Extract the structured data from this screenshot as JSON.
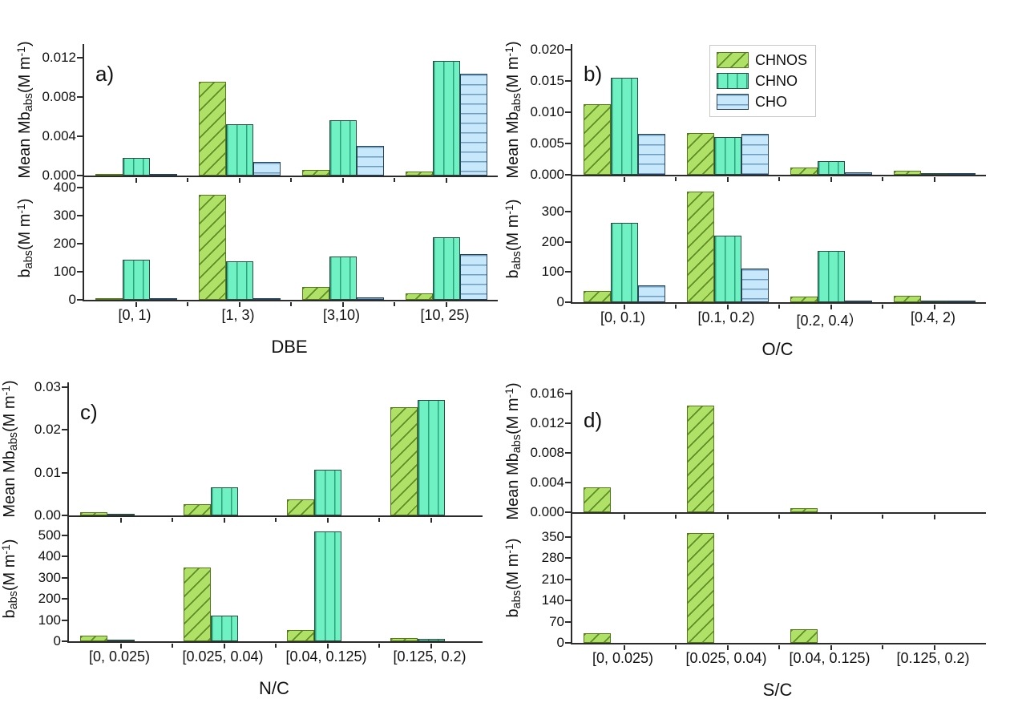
{
  "figure": {
    "background": "#ffffff",
    "text_color": "#111111",
    "axis_color": "#2b2b2b",
    "series_styles": [
      {
        "name": "CHNOS",
        "fill": "#aee166",
        "border": "#55781f",
        "pattern": "diagonal",
        "pattern_color": "#5f8c28"
      },
      {
        "name": "CHNO",
        "fill": "#70f1c4",
        "border": "#2b4a41",
        "pattern": "vertical",
        "pattern_color": "#2aa37c"
      },
      {
        "name": "CHO",
        "fill": "#c6e8fa",
        "border": "#27435c",
        "pattern": "horizontal",
        "pattern_color": "#6d9cc0"
      }
    ],
    "legend": {
      "entries": [
        "CHNOS",
        "CHNO",
        "CHO"
      ],
      "position": "top-right-of-panel-b"
    }
  },
  "chart_data": [
    {
      "panel_label": "a)",
      "type": "bar",
      "xlabel": "DBE",
      "categories": [
        "[0, 1)",
        "[1, 3)",
        "[3,10)",
        "[10, 25)"
      ],
      "top": {
        "ylabel_parts": [
          {
            "t": "Mean Mb"
          },
          {
            "sub": "abs"
          },
          {
            "t": "(M m"
          },
          {
            "sup": "-1"
          },
          {
            "t": ")"
          }
        ],
        "ymax": 0.0134,
        "yticks": [
          0,
          0.004,
          0.008,
          0.012
        ],
        "ytick_labels": [
          "0.000",
          "0.004",
          "0.008",
          "0.012"
        ],
        "series": [
          {
            "name": "CHNOS",
            "values": [
              0.0001,
              0.0096,
              0.0006,
              0.0004
            ]
          },
          {
            "name": "CHNO",
            "values": [
              0.0018,
              0.0052,
              0.0056,
              0.0117
            ]
          },
          {
            "name": "CHO",
            "values": [
              0.0002,
              0.0014,
              0.003,
              0.0104
            ]
          }
        ]
      },
      "bottom": {
        "ylabel_parts": [
          {
            "t": "b"
          },
          {
            "sub": "abs"
          },
          {
            "t": "(M m"
          },
          {
            "sup": "-1"
          },
          {
            "t": ")"
          }
        ],
        "ymax": 443,
        "yticks": [
          0,
          100,
          200,
          300,
          400
        ],
        "ytick_labels": [
          "0",
          "100",
          "200",
          "300",
          "400"
        ],
        "series": [
          {
            "name": "CHNOS",
            "values": [
              2,
              375,
              45,
              23
            ]
          },
          {
            "name": "CHNO",
            "values": [
              144,
              137,
              154,
              223
            ]
          },
          {
            "name": "CHO",
            "values": [
              4,
              2,
              10,
              164
            ]
          }
        ]
      }
    },
    {
      "panel_label": "b)",
      "type": "bar",
      "xlabel": "O/C",
      "show_legend": true,
      "categories": [
        "[0, 0.1)",
        "[0.1, 0.2)",
        "[0.2, 0.4）",
        "[0.4, 2)"
      ],
      "top": {
        "ylabel_parts": [
          {
            "t": "Mean Mb"
          },
          {
            "sub": "abs"
          },
          {
            "t": "(M m"
          },
          {
            "sup": "-1"
          },
          {
            "t": ")"
          }
        ],
        "ymax": 0.0209,
        "yticks": [
          0,
          0.005,
          0.01,
          0.015,
          0.02
        ],
        "ytick_labels": [
          "0.000",
          "0.005",
          "0.010",
          "0.015",
          "0.020"
        ],
        "series": [
          {
            "name": "CHNOS",
            "values": [
              0.0113,
              0.0067,
              0.0012,
              0.0006
            ]
          },
          {
            "name": "CHNO",
            "values": [
              0.0155,
              0.006,
              0.0022,
              0.0003
            ]
          },
          {
            "name": "CHO",
            "values": [
              0.0065,
              0.0065,
              0.0004,
              0.0003
            ]
          }
        ]
      },
      "bottom": {
        "ylabel_parts": [
          {
            "t": "b"
          },
          {
            "sub": "abs"
          },
          {
            "t": "(M m"
          },
          {
            "sup": "-1"
          },
          {
            "t": ")"
          }
        ],
        "ymax": 422,
        "yticks": [
          0,
          100,
          200,
          300
        ],
        "ytick_labels": [
          "0",
          "100",
          "200",
          "300"
        ],
        "series": [
          {
            "name": "CHNOS",
            "values": [
              38,
              365,
              18,
              21
            ]
          },
          {
            "name": "CHNO",
            "values": [
              262,
              220,
              170,
              5
            ]
          },
          {
            "name": "CHO",
            "values": [
              57,
              111,
              3,
              3
            ]
          }
        ]
      }
    },
    {
      "panel_label": "c)",
      "type": "bar",
      "xlabel": "N/C",
      "categories": [
        "[0, 0.025)",
        "[0.025, 0.04)",
        "[0.04, 0.125)",
        "[0.125, 0.2)"
      ],
      "top": {
        "ylabel_parts": [
          {
            "t": "Mean Mb"
          },
          {
            "sub": "abs"
          },
          {
            "t": "(M m"
          },
          {
            "sup": "-1"
          },
          {
            "t": ")"
          }
        ],
        "ymax": 0.0311,
        "yticks": [
          0,
          0.01,
          0.02,
          0.03
        ],
        "ytick_labels": [
          "0.00",
          "0.01",
          "0.02",
          "0.03"
        ],
        "series": [
          {
            "name": "CHNOS",
            "values": [
              0.0008,
              0.0027,
              0.0037,
              0.0252
            ]
          },
          {
            "name": "CHNO",
            "values": [
              0.0002,
              0.0065,
              0.0106,
              0.027
            ]
          },
          {
            "name": "CHO",
            "values": [
              0,
              0,
              0,
              0
            ]
          }
        ]
      },
      "bottom": {
        "ylabel_parts": [
          {
            "t": "b"
          },
          {
            "sub": "abs"
          },
          {
            "t": "(M m"
          },
          {
            "sup": "-1"
          },
          {
            "t": ")"
          }
        ],
        "ymax": 595,
        "yticks": [
          0,
          100,
          200,
          300,
          400,
          500
        ],
        "ytick_labels": [
          "0",
          "100",
          "200",
          "300",
          "400",
          "500"
        ],
        "series": [
          {
            "name": "CHNOS",
            "values": [
              27,
              348,
              53,
              15
            ]
          },
          {
            "name": "CHNO",
            "values": [
              3,
              123,
              520,
              13
            ]
          },
          {
            "name": "CHO",
            "values": [
              0,
              0,
              0,
              0
            ]
          }
        ]
      }
    },
    {
      "panel_label": "d)",
      "type": "bar",
      "xlabel": "S/C",
      "categories": [
        "[0, 0.025)",
        "[0.025, 0.04)",
        "[0.04, 0.125)",
        "[0.125, 0.2)"
      ],
      "top": {
        "ylabel_parts": [
          {
            "t": "Mean Mb"
          },
          {
            "sub": "abs"
          },
          {
            "t": "(M m"
          },
          {
            "sup": "-1"
          },
          {
            "t": ")"
          }
        ],
        "ymax": 0.0164,
        "yticks": [
          0,
          0.004,
          0.008,
          0.012,
          0.016
        ],
        "ytick_labels": [
          "0.000",
          "0.004",
          "0.008",
          "0.012",
          "0.016"
        ],
        "series": [
          {
            "name": "CHNOS",
            "values": [
              0.0033,
              0.0143,
              0.0005,
              0
            ]
          },
          {
            "name": "CHNO",
            "values": [
              0,
              0,
              0,
              0
            ]
          },
          {
            "name": "CHO",
            "values": [
              0,
              0,
              0,
              0
            ]
          }
        ]
      },
      "bottom": {
        "ylabel_parts": [
          {
            "t": "b"
          },
          {
            "sub": "abs"
          },
          {
            "t": "(M m"
          },
          {
            "sup": "-1"
          },
          {
            "t": ")"
          }
        ],
        "ymax": 432,
        "yticks": [
          0,
          70,
          140,
          210,
          280,
          350
        ],
        "ytick_labels": [
          "0",
          "70",
          "140",
          "210",
          "280",
          "350"
        ],
        "series": [
          {
            "name": "CHNOS",
            "values": [
              33,
              363,
              45,
              0
            ]
          },
          {
            "name": "CHNO",
            "values": [
              0,
              0,
              0,
              0
            ]
          },
          {
            "name": "CHO",
            "values": [
              0,
              0,
              0,
              0
            ]
          }
        ]
      }
    }
  ]
}
